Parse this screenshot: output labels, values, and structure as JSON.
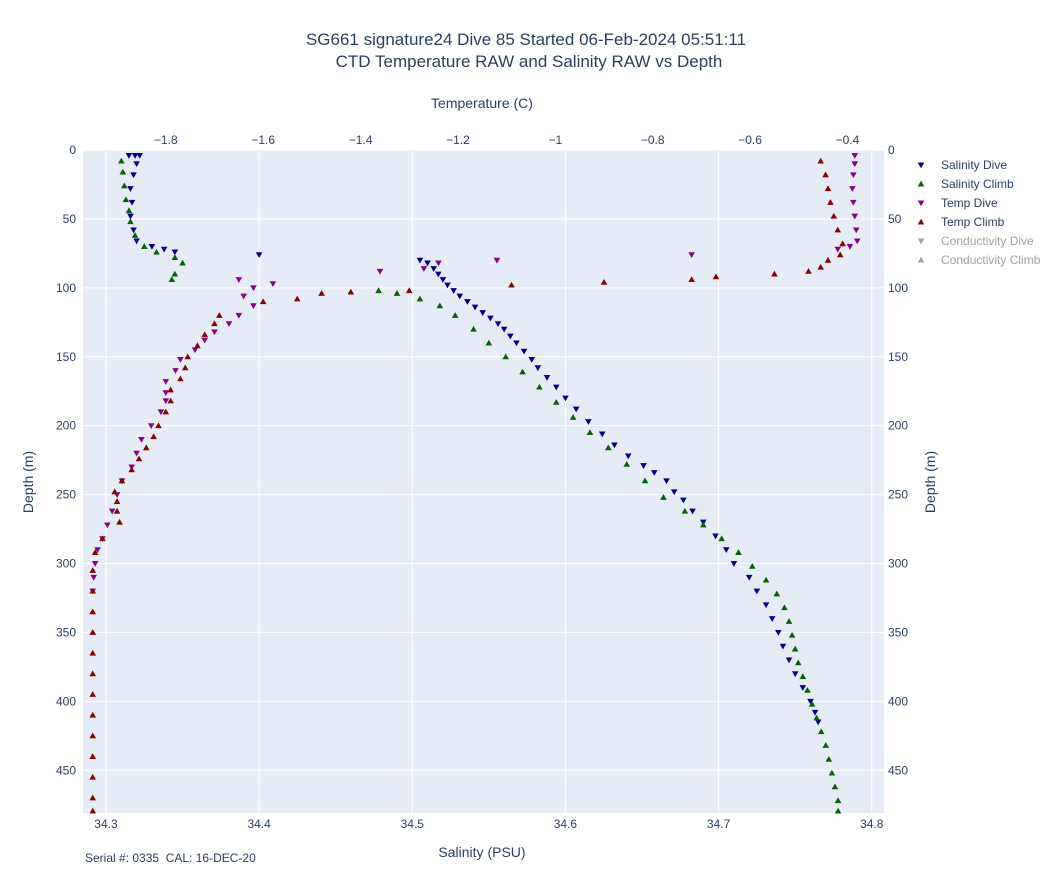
{
  "chart_data": {
    "type": "scatter",
    "title": [
      "SG661 signature24 Dive 85 Started 06-Feb-2024 05:51:11",
      "CTD Temperature RAW and Salinity RAW vs Depth"
    ],
    "xlabel_bottom": "Salinity (PSU)",
    "xlabel_top": "Temperature (C)",
    "ylabel_left": "Depth (m)",
    "ylabel_right": "Depth (m)",
    "xlim_salinity": [
      34.285,
      34.808
    ],
    "xlim_temperature": [
      -1.97,
      -0.325
    ],
    "ylim_depth": [
      0,
      481
    ],
    "y_reversed": true,
    "salinity_ticks": [
      "34.3",
      "34.4",
      "34.5",
      "34.6",
      "34.7",
      "34.8"
    ],
    "salinity_tick_values": [
      34.3,
      34.4,
      34.5,
      34.6,
      34.7,
      34.8
    ],
    "temperature_ticks": [
      "−1.8",
      "−1.6",
      "−1.4",
      "−1.2",
      "−1",
      "−0.8",
      "−0.6",
      "−0.4"
    ],
    "temperature_tick_values": [
      -1.8,
      -1.6,
      -1.4,
      -1.2,
      -1.0,
      -0.8,
      -0.6,
      -0.4
    ],
    "depth_ticks": [
      "0",
      "50",
      "100",
      "150",
      "200",
      "250",
      "300",
      "350",
      "400",
      "450"
    ],
    "depth_tick_values": [
      0,
      50,
      100,
      150,
      200,
      250,
      300,
      350,
      400,
      450
    ],
    "grid": true,
    "legend_position": "right",
    "series": [
      {
        "name": "Salinity Dive",
        "axis": "salinity",
        "marker": "triangle-down",
        "color": "#00008b",
        "visible": true,
        "points": [
          [
            34.315,
            4
          ],
          [
            34.319,
            4
          ],
          [
            34.322,
            4
          ],
          [
            34.32,
            10
          ],
          [
            34.318,
            18
          ],
          [
            34.316,
            28
          ],
          [
            34.317,
            38
          ],
          [
            34.316,
            48
          ],
          [
            34.318,
            58
          ],
          [
            34.32,
            66
          ],
          [
            34.33,
            70
          ],
          [
            34.338,
            72
          ],
          [
            34.345,
            74
          ],
          [
            34.4,
            76
          ],
          [
            34.505,
            80
          ],
          [
            34.51,
            82
          ],
          [
            34.514,
            86
          ],
          [
            34.517,
            90
          ],
          [
            34.52,
            94
          ],
          [
            34.523,
            98
          ],
          [
            34.527,
            102
          ],
          [
            34.531,
            106
          ],
          [
            34.536,
            110
          ],
          [
            34.541,
            114
          ],
          [
            34.546,
            118
          ],
          [
            34.551,
            122
          ],
          [
            34.556,
            126
          ],
          [
            34.56,
            130
          ],
          [
            34.564,
            135
          ],
          [
            34.568,
            140
          ],
          [
            34.573,
            146
          ],
          [
            34.578,
            152
          ],
          [
            34.582,
            158
          ],
          [
            34.588,
            165
          ],
          [
            34.594,
            172
          ],
          [
            34.6,
            180
          ],
          [
            34.607,
            188
          ],
          [
            34.615,
            197
          ],
          [
            34.624,
            206
          ],
          [
            34.632,
            214
          ],
          [
            34.641,
            222
          ],
          [
            34.651,
            229
          ],
          [
            34.658,
            234
          ],
          [
            34.666,
            240
          ],
          [
            34.671,
            248
          ],
          [
            34.677,
            254
          ],
          [
            34.683,
            262
          ],
          [
            34.69,
            270
          ],
          [
            34.698,
            280
          ],
          [
            34.705,
            290
          ],
          [
            34.71,
            300
          ],
          [
            34.72,
            310
          ],
          [
            34.725,
            320
          ],
          [
            34.731,
            330
          ],
          [
            34.735,
            340
          ],
          [
            34.739,
            350
          ],
          [
            34.742,
            360
          ],
          [
            34.746,
            370
          ],
          [
            34.75,
            380
          ],
          [
            34.755,
            390
          ],
          [
            34.76,
            400
          ],
          [
            34.763,
            408
          ],
          [
            34.765,
            415
          ]
        ]
      },
      {
        "name": "Salinity Climb",
        "axis": "salinity",
        "marker": "triangle-up",
        "color": "#006400",
        "visible": true,
        "points": [
          [
            34.778,
            481
          ],
          [
            34.778,
            472
          ],
          [
            34.776,
            462
          ],
          [
            34.774,
            452
          ],
          [
            34.772,
            442
          ],
          [
            34.77,
            432
          ],
          [
            34.767,
            422
          ],
          [
            34.764,
            412
          ],
          [
            34.761,
            402
          ],
          [
            34.758,
            392
          ],
          [
            34.755,
            382
          ],
          [
            34.752,
            372
          ],
          [
            34.75,
            362
          ],
          [
            34.748,
            352
          ],
          [
            34.746,
            342
          ],
          [
            34.743,
            332
          ],
          [
            34.738,
            322
          ],
          [
            34.731,
            312
          ],
          [
            34.722,
            302
          ],
          [
            34.713,
            292
          ],
          [
            34.702,
            282
          ],
          [
            34.69,
            272
          ],
          [
            34.678,
            262
          ],
          [
            34.664,
            252
          ],
          [
            34.652,
            240
          ],
          [
            34.64,
            228
          ],
          [
            34.628,
            216
          ],
          [
            34.616,
            205
          ],
          [
            34.605,
            194
          ],
          [
            34.594,
            183
          ],
          [
            34.583,
            172
          ],
          [
            34.572,
            161
          ],
          [
            34.561,
            150
          ],
          [
            34.55,
            140
          ],
          [
            34.54,
            130
          ],
          [
            34.528,
            120
          ],
          [
            34.518,
            113
          ],
          [
            34.505,
            108
          ],
          [
            34.49,
            104
          ],
          [
            34.478,
            102
          ],
          [
            34.345,
            90
          ],
          [
            34.343,
            94
          ],
          [
            34.35,
            82
          ],
          [
            34.345,
            78
          ],
          [
            34.333,
            74
          ],
          [
            34.325,
            70
          ],
          [
            34.319,
            62
          ],
          [
            34.316,
            52
          ],
          [
            34.315,
            44
          ],
          [
            34.313,
            36
          ],
          [
            34.312,
            26
          ],
          [
            34.311,
            16
          ],
          [
            34.31,
            8
          ]
        ]
      },
      {
        "name": "Temp Dive",
        "axis": "temperature",
        "marker": "triangle-down",
        "color": "#8b008b",
        "visible": true,
        "points": [
          [
            -0.385,
            4
          ],
          [
            -0.385,
            10
          ],
          [
            -0.388,
            18
          ],
          [
            -0.39,
            28
          ],
          [
            -0.388,
            38
          ],
          [
            -0.385,
            48
          ],
          [
            -0.382,
            58
          ],
          [
            -0.38,
            66
          ],
          [
            -0.395,
            70
          ],
          [
            -0.42,
            72
          ],
          [
            -0.72,
            76
          ],
          [
            -1.12,
            80
          ],
          [
            -1.24,
            82
          ],
          [
            -1.27,
            86
          ],
          [
            -1.36,
            88
          ],
          [
            -1.65,
            94
          ],
          [
            -1.58,
            97
          ],
          [
            -1.62,
            100
          ],
          [
            -1.64,
            106
          ],
          [
            -1.62,
            113
          ],
          [
            -1.65,
            120
          ],
          [
            -1.67,
            126
          ],
          [
            -1.7,
            132
          ],
          [
            -1.72,
            138
          ],
          [
            -1.74,
            145
          ],
          [
            -1.77,
            152
          ],
          [
            -1.78,
            160
          ],
          [
            -1.8,
            168
          ],
          [
            -1.8,
            176
          ],
          [
            -1.8,
            182
          ],
          [
            -1.81,
            190
          ],
          [
            -1.83,
            200
          ],
          [
            -1.85,
            210
          ],
          [
            -1.86,
            220
          ],
          [
            -1.87,
            230
          ],
          [
            -1.89,
            240
          ],
          [
            -1.9,
            250
          ],
          [
            -1.91,
            262
          ],
          [
            -1.92,
            272
          ],
          [
            -1.93,
            282
          ],
          [
            -1.94,
            290
          ],
          [
            -1.945,
            300
          ],
          [
            -1.948,
            310
          ],
          [
            -1.95,
            320
          ]
        ]
      },
      {
        "name": "Temp Climb",
        "axis": "temperature",
        "marker": "triangle-up",
        "color": "#8b0000",
        "visible": true,
        "points": [
          [
            -1.95,
            481
          ],
          [
            -1.95,
            470
          ],
          [
            -1.95,
            455
          ],
          [
            -1.95,
            440
          ],
          [
            -1.95,
            425
          ],
          [
            -1.95,
            410
          ],
          [
            -1.95,
            395
          ],
          [
            -1.95,
            380
          ],
          [
            -1.95,
            365
          ],
          [
            -1.95,
            350
          ],
          [
            -1.95,
            335
          ],
          [
            -1.95,
            320
          ],
          [
            -1.95,
            305
          ],
          [
            -1.945,
            292
          ],
          [
            -1.93,
            282
          ],
          [
            -1.895,
            270
          ],
          [
            -1.9,
            262
          ],
          [
            -1.9,
            255
          ],
          [
            -1.905,
            248
          ],
          [
            -1.89,
            240
          ],
          [
            -1.87,
            232
          ],
          [
            -1.855,
            224
          ],
          [
            -1.84,
            216
          ],
          [
            -1.825,
            208
          ],
          [
            -1.815,
            200
          ],
          [
            -1.8,
            190
          ],
          [
            -1.79,
            182
          ],
          [
            -1.79,
            174
          ],
          [
            -1.77,
            166
          ],
          [
            -1.76,
            158
          ],
          [
            -1.755,
            150
          ],
          [
            -1.735,
            142
          ],
          [
            -1.72,
            134
          ],
          [
            -1.7,
            126
          ],
          [
            -1.69,
            120
          ],
          [
            -1.6,
            110
          ],
          [
            -1.53,
            108
          ],
          [
            -1.48,
            104
          ],
          [
            -1.42,
            103
          ],
          [
            -1.3,
            102
          ],
          [
            -1.09,
            98
          ],
          [
            -0.9,
            96
          ],
          [
            -0.72,
            94
          ],
          [
            -0.67,
            92
          ],
          [
            -0.55,
            90
          ],
          [
            -0.48,
            88
          ],
          [
            -0.455,
            85
          ],
          [
            -0.44,
            80
          ],
          [
            -0.415,
            76
          ],
          [
            -0.41,
            68
          ],
          [
            -0.42,
            58
          ],
          [
            -0.428,
            48
          ],
          [
            -0.435,
            38
          ],
          [
            -0.44,
            28
          ],
          [
            -0.445,
            18
          ],
          [
            -0.455,
            8
          ]
        ]
      },
      {
        "name": "Conductivity Dive",
        "axis": "temperature",
        "marker": "triangle-down",
        "color": "#a0a0a0",
        "visible": false,
        "points": []
      },
      {
        "name": "Conductivity Climb",
        "axis": "temperature",
        "marker": "triangle-up",
        "color": "#a0a0a0",
        "visible": false,
        "points": []
      }
    ],
    "annotation": "Serial #: 0335  CAL: 16-DEC-20"
  }
}
